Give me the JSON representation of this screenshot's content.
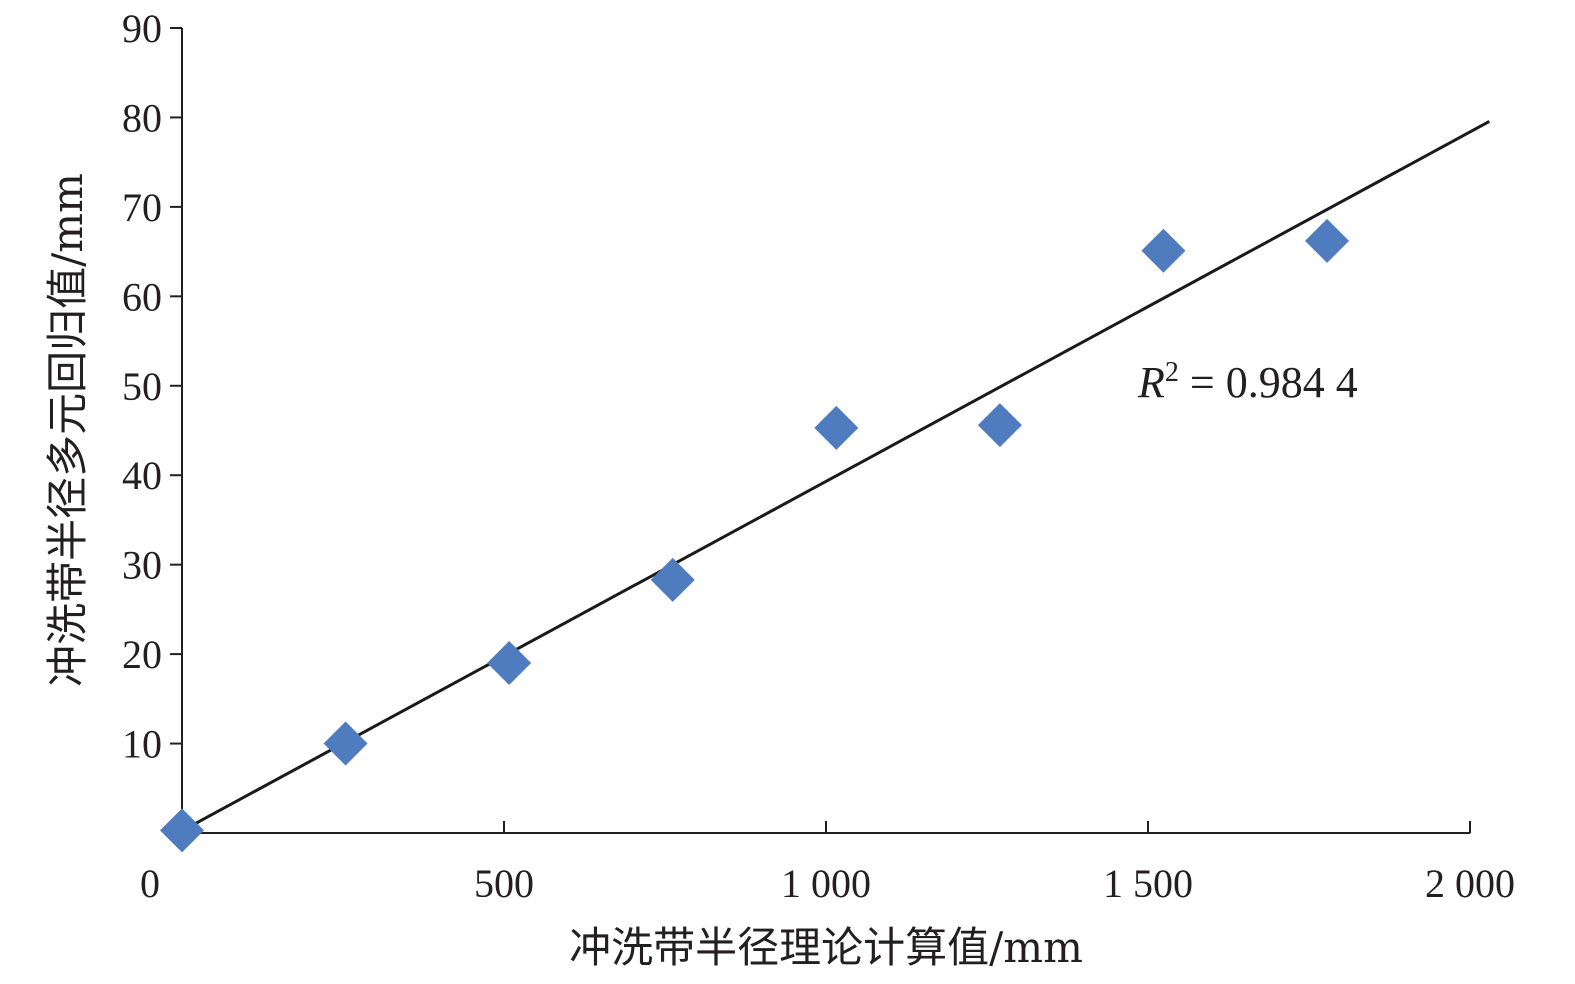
{
  "chart_data": {
    "type": "scatter",
    "xlabel": "冲洗带半径理论计算值/mm",
    "ylabel": "冲洗带半径多元回归值/mm",
    "xlim": [
      0,
      2000
    ],
    "ylim": [
      0,
      90
    ],
    "x_ticks": [
      0,
      500,
      1000,
      1500,
      2000
    ],
    "x_tick_labels": [
      "0",
      "500",
      "1 000",
      "1 500",
      "2 000"
    ],
    "y_ticks": [
      10,
      20,
      30,
      40,
      50,
      60,
      70,
      80,
      90
    ],
    "y_tick_labels": [
      "10",
      "20",
      "30",
      "40",
      "50",
      "60",
      "70",
      "80",
      "90"
    ],
    "grid": false,
    "marker": "diamond",
    "marker_color": "#4f7bbf",
    "line_color": "#1a1a1a",
    "series": [
      {
        "x": [
          0,
          254,
          508,
          762,
          1016,
          1270,
          1524,
          1778
        ],
        "y": [
          0.3,
          10.0,
          19.0,
          28.3,
          45.3,
          45.6,
          65.1,
          66.2
        ]
      }
    ],
    "trendline": {
      "type": "linear",
      "label_italic": "R",
      "label_sup": "2",
      "label_rest": " = 0.984 4"
    }
  }
}
